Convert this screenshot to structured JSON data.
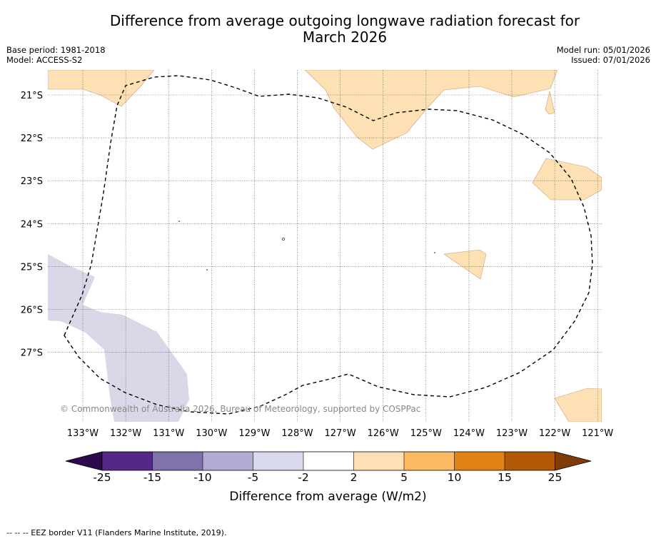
{
  "header": {
    "title_line1": "Difference from average outgoing longwave radiation forecast for",
    "title_line2": "March 2026",
    "base_period": "Base period: 1981-2018",
    "model": "Model: ACCESS-S2",
    "model_run": "Model run: 05/01/2026",
    "issued": "Issued: 07/01/2026"
  },
  "map": {
    "lon_labels": [
      "133°W",
      "132°W",
      "131°W",
      "130°W",
      "129°W",
      "128°W",
      "127°W",
      "126°W",
      "125°W",
      "124°W",
      "123°W",
      "122°W",
      "121°W"
    ],
    "lat_labels": [
      "21°S",
      "22°S",
      "23°S",
      "24°S",
      "25°S",
      "26°S",
      "27°S"
    ],
    "copyright": "© Commonwealth of Australia 2026, Bureau of Meteorology, supported by COSPPac",
    "colors": {
      "positive_small": "#fde0b3",
      "negative_small": "#d8d8e8",
      "eez_line": "#000000",
      "grid": "#555555"
    }
  },
  "colorbar": {
    "ticks": [
      "-25",
      "-15",
      "-10",
      "-5",
      "-2",
      "2",
      "5",
      "10",
      "15",
      "25"
    ],
    "colors": [
      "#2d0a4e",
      "#542788",
      "#8073ac",
      "#b2abd2",
      "#d8daeb",
      "#ffffff",
      "#fee0b6",
      "#fdb863",
      "#e08214",
      "#b35806",
      "#7f3b08"
    ],
    "label": "Difference from average (W/m2)"
  },
  "footer": {
    "legend": "--  --  -- EEZ border V11 (Flanders Marine Institute, 2019)."
  }
}
